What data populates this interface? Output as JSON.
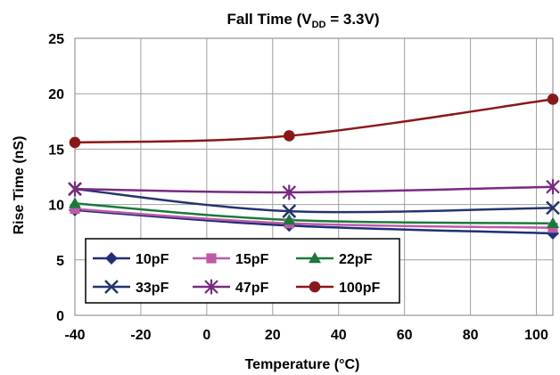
{
  "chart_data": {
    "type": "line",
    "title": "Fall Time (V",
    "title_sub": "DD",
    "title_tail": " = 3.3V)",
    "xlabel": "Temperature (°C)",
    "ylabel": "Rise Time (nS)",
    "xlim": [
      -40,
      105
    ],
    "ylim": [
      0,
      25
    ],
    "xticks": [
      -40,
      -20,
      0,
      20,
      40,
      60,
      80,
      100
    ],
    "yticks": [
      0,
      5,
      10,
      15,
      20,
      25
    ],
    "grid": true,
    "legend_position": "bottom-left",
    "x": [
      -40,
      25,
      105
    ],
    "series": [
      {
        "name": "10pF",
        "color": "#1f2f7a",
        "marker": "diamond",
        "values": [
          9.5,
          8.1,
          7.4
        ]
      },
      {
        "name": "15pF",
        "color": "#c05aa8",
        "marker": "square",
        "values": [
          9.6,
          8.3,
          7.9
        ]
      },
      {
        "name": "22pF",
        "color": "#1a7a3a",
        "marker": "triangle",
        "values": [
          10.1,
          8.6,
          8.3
        ]
      },
      {
        "name": "33pF",
        "color": "#26346e",
        "marker": "x",
        "values": [
          11.4,
          9.4,
          9.7
        ]
      },
      {
        "name": "47pF",
        "color": "#7a2a82",
        "marker": "star",
        "values": [
          11.4,
          11.1,
          11.6
        ]
      },
      {
        "name": "100pF",
        "color": "#8a1818",
        "marker": "circle",
        "values": [
          15.6,
          16.2,
          19.5
        ]
      }
    ]
  }
}
